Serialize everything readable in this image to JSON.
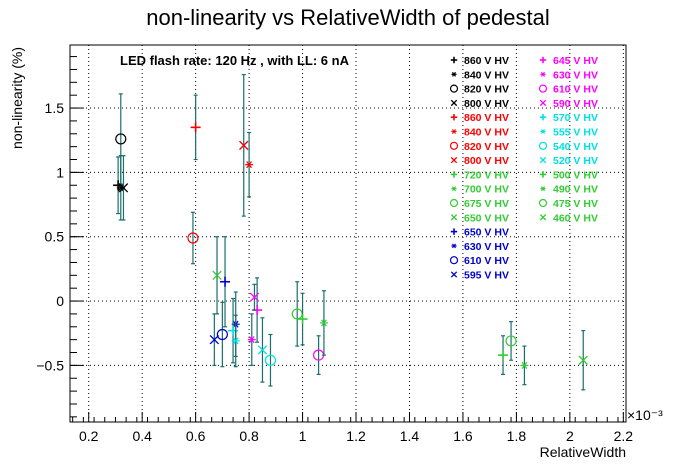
{
  "chart_data": {
    "type": "scatter",
    "title": "non-linearity vs RelativeWidth of pedestal",
    "subtitle": "LED flash rate: 120 Hz , with LL: 6 nA",
    "xlabel": "RelativeWidth",
    "ylabel": "non-linearity (%)",
    "x_multiplier_label": "×10⁻³",
    "xlim": [
      0.13,
      2.21
    ],
    "ylim": [
      -0.94,
      1.99
    ],
    "xticks": [
      0.2,
      0.4,
      0.6,
      0.8,
      1,
      1.2,
      1.4,
      1.6,
      1.8,
      2,
      2.2
    ],
    "xtick_labels": [
      "0.2",
      "0.4",
      "0.6",
      "0.8",
      "1",
      "1.2",
      "1.4",
      "1.6",
      "1.8",
      "2",
      "2.2"
    ],
    "yticks": [
      -0.5,
      0,
      0.5,
      1,
      1.5
    ],
    "ytick_labels": [
      "−0.5",
      "0",
      "0.5",
      "1",
      "1.5"
    ],
    "grid": true,
    "legend_placement": "top-right",
    "colors": {
      "black": "#000000",
      "red": "#ff0000",
      "green": "#33cc33",
      "blue": "#0000cc",
      "magenta": "#ff00ff",
      "cyan": "#00e0e0",
      "errorbar": "#1a6e6e"
    },
    "legend": {
      "col1": [
        {
          "marker": "+",
          "label": "860 V HV",
          "color": "#000000"
        },
        {
          "marker": "*",
          "label": "840 V HV",
          "color": "#000000"
        },
        {
          "marker": "O",
          "label": "820 V HV",
          "color": "#000000"
        },
        {
          "marker": "X",
          "label": "800 V HV",
          "color": "#000000"
        },
        {
          "marker": "+",
          "label": "860 V HV",
          "color": "#ff0000"
        },
        {
          "marker": "*",
          "label": "840 V HV",
          "color": "#ff0000"
        },
        {
          "marker": "O",
          "label": "820 V HV",
          "color": "#ff0000"
        },
        {
          "marker": "X",
          "label": "800 V HV",
          "color": "#ff0000"
        },
        {
          "marker": "+",
          "label": "720 V HV",
          "color": "#33cc33"
        },
        {
          "marker": "*",
          "label": "700 V HV",
          "color": "#33cc33"
        },
        {
          "marker": "O",
          "label": "675 V HV",
          "color": "#33cc33"
        },
        {
          "marker": "X",
          "label": "650 V HV",
          "color": "#33cc33"
        },
        {
          "marker": "+",
          "label": "650 V HV",
          "color": "#0000cc"
        },
        {
          "marker": "*",
          "label": "630 V HV",
          "color": "#0000cc"
        },
        {
          "marker": "O",
          "label": "610 V HV",
          "color": "#0000cc"
        },
        {
          "marker": "X",
          "label": "595 V HV",
          "color": "#0000cc"
        }
      ],
      "col2": [
        {
          "marker": "+",
          "label": "645 V HV",
          "color": "#ff00ff"
        },
        {
          "marker": "*",
          "label": "630 V HV",
          "color": "#ff00ff"
        },
        {
          "marker": "O",
          "label": "610 V HV",
          "color": "#ff00ff"
        },
        {
          "marker": "X",
          "label": "590 V HV",
          "color": "#ff00ff"
        },
        {
          "marker": "+",
          "label": "570 V HV",
          "color": "#00e0e0"
        },
        {
          "marker": "*",
          "label": "555 V HV",
          "color": "#00e0e0"
        },
        {
          "marker": "O",
          "label": "540 V HV",
          "color": "#00e0e0"
        },
        {
          "marker": "X",
          "label": "520 V HV",
          "color": "#00e0e0"
        },
        {
          "marker": "+",
          "label": "500 V HV",
          "color": "#33cc33"
        },
        {
          "marker": "*",
          "label": "490 V HV",
          "color": "#33cc33"
        },
        {
          "marker": "O",
          "label": "475 V HV",
          "color": "#33cc33"
        },
        {
          "marker": "X",
          "label": "460 V HV",
          "color": "#33cc33"
        }
      ]
    },
    "points": [
      {
        "x": 0.31,
        "y": 0.9,
        "err": 0.22,
        "marker": "+",
        "color": "#000000"
      },
      {
        "x": 0.32,
        "y": 0.88,
        "err": 0.25,
        "marker": "*",
        "color": "#000000"
      },
      {
        "x": 0.32,
        "y": 1.26,
        "err": 0.35,
        "marker": "O",
        "color": "#000000"
      },
      {
        "x": 0.33,
        "y": 0.88,
        "err": 0.25,
        "marker": "X",
        "color": "#000000"
      },
      {
        "x": 0.6,
        "y": 1.35,
        "err": 0.25,
        "marker": "+",
        "color": "#ff0000"
      },
      {
        "x": 0.8,
        "y": 1.06,
        "err": 0.25,
        "marker": "*",
        "color": "#ff0000"
      },
      {
        "x": 0.59,
        "y": 0.49,
        "err": 0.2,
        "marker": "O",
        "color": "#ff0000"
      },
      {
        "x": 0.78,
        "y": 1.21,
        "err": 0.55,
        "marker": "X",
        "color": "#ff0000"
      },
      {
        "x": 0.71,
        "y": 0.15,
        "err": 0.35,
        "marker": "+",
        "color": "#0000cc"
      },
      {
        "x": 0.75,
        "y": -0.18,
        "err": 0.25,
        "marker": "*",
        "color": "#0000cc"
      },
      {
        "x": 0.7,
        "y": -0.26,
        "err": 0.25,
        "marker": "O",
        "color": "#0000cc"
      },
      {
        "x": 0.67,
        "y": -0.3,
        "err": 0.2,
        "marker": "X",
        "color": "#0000cc"
      },
      {
        "x": 0.83,
        "y": -0.07,
        "err": 0.25,
        "marker": "+",
        "color": "#ff00ff"
      },
      {
        "x": 0.81,
        "y": -0.3,
        "err": 0.2,
        "marker": "*",
        "color": "#ff00ff"
      },
      {
        "x": 1.06,
        "y": -0.42,
        "err": 0.15,
        "marker": "O",
        "color": "#ff00ff"
      },
      {
        "x": 0.82,
        "y": 0.03,
        "err": 0.1,
        "marker": "X",
        "color": "#ff00ff"
      },
      {
        "x": 0.74,
        "y": -0.23,
        "err": 0.25,
        "marker": "+",
        "color": "#00e0e0"
      },
      {
        "x": 0.75,
        "y": -0.31,
        "err": 0.2,
        "marker": "*",
        "color": "#00e0e0"
      },
      {
        "x": 0.88,
        "y": -0.46,
        "err": 0.2,
        "marker": "O",
        "color": "#00e0e0"
      },
      {
        "x": 0.85,
        "y": -0.38,
        "err": 0.25,
        "marker": "X",
        "color": "#00e0e0"
      },
      {
        "x": 0.98,
        "y": -0.1,
        "err": 0.25,
        "marker": "O",
        "color": "#33cc33"
      },
      {
        "x": 1.0,
        "y": -0.14,
        "err": 0.2,
        "marker": "+",
        "color": "#33cc33"
      },
      {
        "x": 1.08,
        "y": -0.17,
        "err": 0.25,
        "marker": "*",
        "color": "#33cc33"
      },
      {
        "x": 0.68,
        "y": 0.2,
        "err": 0.3,
        "marker": "X",
        "color": "#33cc33"
      },
      {
        "x": 1.75,
        "y": -0.42,
        "err": 0.15,
        "marker": "+",
        "color": "#33cc33"
      },
      {
        "x": 1.83,
        "y": -0.5,
        "err": 0.15,
        "marker": "*",
        "color": "#33cc33"
      },
      {
        "x": 1.78,
        "y": -0.31,
        "err": 0.15,
        "marker": "O",
        "color": "#33cc33"
      },
      {
        "x": 2.05,
        "y": -0.46,
        "err": 0.23,
        "marker": "X",
        "color": "#33cc33"
      }
    ]
  }
}
